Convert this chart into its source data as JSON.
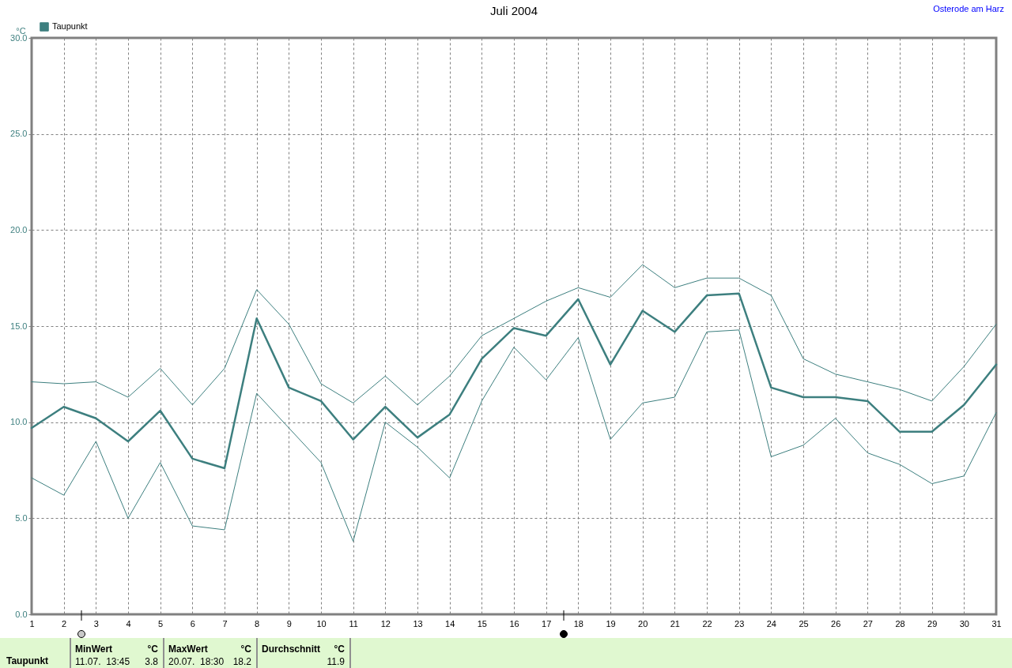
{
  "chart_data": {
    "type": "line",
    "title": "Juli 2004",
    "ylabel": "°C",
    "x": [
      1,
      2,
      3,
      4,
      5,
      6,
      7,
      8,
      9,
      10,
      11,
      12,
      13,
      14,
      15,
      16,
      17,
      18,
      19,
      20,
      21,
      22,
      23,
      24,
      25,
      26,
      27,
      28,
      29,
      30,
      31
    ],
    "series": [
      {
        "name": "Taupunkt",
        "color": "#3d7f7f",
        "values": [
          9.7,
          10.8,
          10.2,
          9.0,
          10.6,
          8.1,
          7.6,
          15.4,
          11.8,
          11.1,
          9.1,
          10.8,
          9.2,
          10.4,
          13.3,
          14.9,
          14.5,
          16.4,
          13.0,
          15.8,
          14.7,
          16.6,
          16.7,
          11.8,
          11.3,
          11.3,
          11.1,
          9.5,
          9.5,
          10.9,
          13.0
        ]
      },
      {
        "color": "#3d7f7f",
        "values": [
          12.1,
          12.0,
          12.1,
          11.3,
          12.8,
          10.9,
          12.8,
          16.9,
          15.1,
          12.0,
          11.0,
          12.4,
          10.9,
          12.4,
          14.5,
          15.4,
          16.3,
          17.0,
          16.5,
          18.2,
          17.0,
          17.5,
          17.5,
          16.6,
          13.3,
          12.5,
          12.1,
          11.7,
          11.1,
          12.9,
          15.1
        ]
      },
      {
        "color": "#3d7f7f",
        "values": [
          7.1,
          6.2,
          9.0,
          5.0,
          7.9,
          4.6,
          4.4,
          11.5,
          9.7,
          7.9,
          3.8,
          10.0,
          8.7,
          7.1,
          11.1,
          13.9,
          12.2,
          14.4,
          9.1,
          11.0,
          11.3,
          14.7,
          14.8,
          8.2,
          8.8,
          10.2,
          8.4,
          7.8,
          6.8,
          7.2,
          10.5
        ]
      }
    ],
    "xlim": [
      1,
      31
    ],
    "xticks": [
      1,
      2,
      3,
      4,
      5,
      6,
      7,
      8,
      9,
      10,
      11,
      12,
      13,
      14,
      15,
      16,
      17,
      18,
      19,
      20,
      21,
      22,
      23,
      24,
      25,
      26,
      27,
      28,
      29,
      30,
      31
    ],
    "ylim": [
      0,
      30
    ],
    "yticks": [
      {
        "value": 0,
        "label": "0.0"
      },
      {
        "value": 5,
        "label": "5.0"
      },
      {
        "value": 10,
        "label": "10.0"
      },
      {
        "value": 15,
        "label": "15.0"
      },
      {
        "value": 20,
        "label": "20.0"
      },
      {
        "value": 25,
        "label": "25.0"
      },
      {
        "value": 30,
        "label": "30.0"
      }
    ],
    "grid": true,
    "legend": "top left",
    "marker": "none",
    "line_style": "solid",
    "annotations": [
      "Osterode am Harz",
      "Taupunkt",
      "MinWert",
      "°C",
      "11.07.  13:45",
      "3.8",
      "MaxWert",
      "°C",
      "20.07.  18:30",
      "18.2",
      "Durchschnitt",
      "°C",
      "11.9"
    ]
  }
}
